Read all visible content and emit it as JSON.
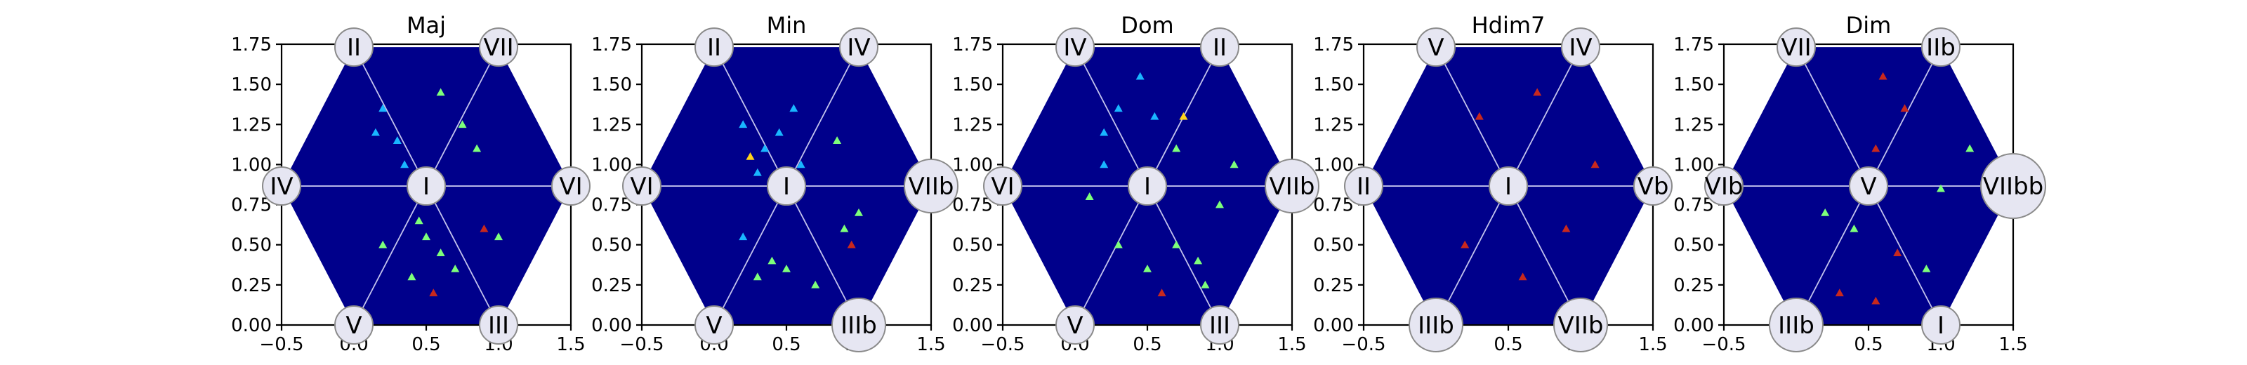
{
  "chart_data": [
    {
      "type": "heatmap",
      "title": "Maj",
      "xlim": [
        -0.5,
        1.5
      ],
      "ylim": [
        0.0,
        1.75
      ],
      "xticks": [
        "−0.5",
        "0.0",
        "0.5",
        "1.0",
        "1.5"
      ],
      "yticks": [
        "0.00",
        "0.25",
        "0.50",
        "0.75",
        "1.00",
        "1.25",
        "1.50",
        "1.75"
      ],
      "nodes": [
        {
          "label": "I",
          "x": 0.5,
          "y": 0.866
        },
        {
          "label": "II",
          "x": 0.0,
          "y": 1.732
        },
        {
          "label": "VII",
          "x": 1.0,
          "y": 1.732
        },
        {
          "label": "IV",
          "x": -0.5,
          "y": 0.866
        },
        {
          "label": "VI",
          "x": 1.5,
          "y": 0.866
        },
        {
          "label": "V",
          "x": 0.0,
          "y": 0.0
        },
        {
          "label": "III",
          "x": 1.0,
          "y": 0.0
        }
      ],
      "hot_points": [
        {
          "x": 0.15,
          "y": 1.2,
          "level": "cyan"
        },
        {
          "x": 0.2,
          "y": 1.35,
          "level": "cyan"
        },
        {
          "x": 0.3,
          "y": 1.15,
          "level": "cyan"
        },
        {
          "x": 0.6,
          "y": 1.45,
          "level": "green"
        },
        {
          "x": 0.75,
          "y": 1.25,
          "level": "green"
        },
        {
          "x": 0.85,
          "y": 1.1,
          "level": "green"
        },
        {
          "x": 0.5,
          "y": 0.55,
          "level": "green"
        },
        {
          "x": 0.6,
          "y": 0.45,
          "level": "green"
        },
        {
          "x": 0.2,
          "y": 0.5,
          "level": "green"
        },
        {
          "x": 0.4,
          "y": 0.3,
          "level": "green"
        },
        {
          "x": 0.7,
          "y": 0.35,
          "level": "green"
        },
        {
          "x": 0.55,
          "y": 0.2,
          "level": "red"
        },
        {
          "x": 0.9,
          "y": 0.6,
          "level": "red"
        },
        {
          "x": 0.35,
          "y": 1.0,
          "level": "cyan"
        },
        {
          "x": 1.0,
          "y": 0.55,
          "level": "green"
        },
        {
          "x": 0.45,
          "y": 0.65,
          "level": "green"
        }
      ]
    },
    {
      "type": "heatmap",
      "title": "Min",
      "xlim": [
        -0.5,
        1.5
      ],
      "ylim": [
        0.0,
        1.75
      ],
      "xticks": [
        "−0.5",
        "0.0",
        "0.5",
        "1.0",
        "1.5"
      ],
      "yticks": [
        "0.00",
        "0.25",
        "0.50",
        "0.75",
        "1.00",
        "1.25",
        "1.50",
        "1.75"
      ],
      "nodes": [
        {
          "label": "I",
          "x": 0.5,
          "y": 0.866
        },
        {
          "label": "II",
          "x": 0.0,
          "y": 1.732
        },
        {
          "label": "IV",
          "x": 1.0,
          "y": 1.732
        },
        {
          "label": "VI",
          "x": -0.5,
          "y": 0.866
        },
        {
          "label": "VIIb",
          "x": 1.5,
          "y": 0.866
        },
        {
          "label": "V",
          "x": 0.0,
          "y": 0.0
        },
        {
          "label": "IIIb",
          "x": 1.0,
          "y": 0.0
        }
      ],
      "hot_points": [
        {
          "x": 0.25,
          "y": 1.05,
          "level": "yellow"
        },
        {
          "x": 0.35,
          "y": 1.1,
          "level": "cyan"
        },
        {
          "x": 0.2,
          "y": 1.25,
          "level": "cyan"
        },
        {
          "x": 0.45,
          "y": 1.2,
          "level": "cyan"
        },
        {
          "x": 0.55,
          "y": 1.35,
          "level": "cyan"
        },
        {
          "x": 0.3,
          "y": 0.95,
          "level": "cyan"
        },
        {
          "x": 0.4,
          "y": 0.4,
          "level": "green"
        },
        {
          "x": 0.3,
          "y": 0.3,
          "level": "green"
        },
        {
          "x": 0.5,
          "y": 0.35,
          "level": "green"
        },
        {
          "x": 0.2,
          "y": 0.55,
          "level": "cyan"
        },
        {
          "x": 0.9,
          "y": 0.6,
          "level": "green"
        },
        {
          "x": 1.0,
          "y": 0.7,
          "level": "green"
        },
        {
          "x": 0.85,
          "y": 1.15,
          "level": "green"
        },
        {
          "x": 0.7,
          "y": 0.25,
          "level": "green"
        },
        {
          "x": 0.95,
          "y": 0.5,
          "level": "red"
        },
        {
          "x": 0.6,
          "y": 1.0,
          "level": "cyan"
        }
      ]
    },
    {
      "type": "heatmap",
      "title": "Dom",
      "xlim": [
        -0.5,
        1.5
      ],
      "ylim": [
        0.0,
        1.75
      ],
      "xticks": [
        "−0.5",
        "0.0",
        "0.5",
        "1.0",
        "1.5"
      ],
      "yticks": [
        "0.00",
        "0.25",
        "0.50",
        "0.75",
        "1.00",
        "1.25",
        "1.50",
        "1.75"
      ],
      "nodes": [
        {
          "label": "I",
          "x": 0.5,
          "y": 0.866
        },
        {
          "label": "IV",
          "x": 0.0,
          "y": 1.732
        },
        {
          "label": "II",
          "x": 1.0,
          "y": 1.732
        },
        {
          "label": "VI",
          "x": -0.5,
          "y": 0.866
        },
        {
          "label": "VIIb",
          "x": 1.5,
          "y": 0.866
        },
        {
          "label": "V",
          "x": 0.0,
          "y": 0.0
        },
        {
          "label": "III",
          "x": 1.0,
          "y": 0.0
        }
      ],
      "hot_points": [
        {
          "x": 0.2,
          "y": 1.2,
          "level": "cyan"
        },
        {
          "x": 0.3,
          "y": 1.35,
          "level": "cyan"
        },
        {
          "x": 0.55,
          "y": 1.3,
          "level": "cyan"
        },
        {
          "x": 0.7,
          "y": 1.1,
          "level": "green"
        },
        {
          "x": 0.45,
          "y": 1.55,
          "level": "cyan"
        },
        {
          "x": 0.75,
          "y": 1.3,
          "level": "yellow"
        },
        {
          "x": 0.3,
          "y": 0.5,
          "level": "green"
        },
        {
          "x": 0.5,
          "y": 0.35,
          "level": "green"
        },
        {
          "x": 0.7,
          "y": 0.5,
          "level": "green"
        },
        {
          "x": 0.85,
          "y": 0.4,
          "level": "green"
        },
        {
          "x": 1.0,
          "y": 0.75,
          "level": "green"
        },
        {
          "x": 1.1,
          "y": 1.0,
          "level": "green"
        },
        {
          "x": 0.6,
          "y": 0.2,
          "level": "red"
        },
        {
          "x": 0.1,
          "y": 0.8,
          "level": "green"
        },
        {
          "x": 0.2,
          "y": 1.0,
          "level": "cyan"
        },
        {
          "x": 0.9,
          "y": 0.25,
          "level": "green"
        }
      ]
    },
    {
      "type": "heatmap",
      "title": "Hdim7",
      "xlim": [
        -0.5,
        1.5
      ],
      "ylim": [
        0.0,
        1.75
      ],
      "xticks": [
        "−0.5",
        "0.0",
        "0.5",
        "1.0",
        "1.5"
      ],
      "yticks": [
        "0.00",
        "0.25",
        "0.50",
        "0.75",
        "1.00",
        "1.25",
        "1.50",
        "1.75"
      ],
      "nodes": [
        {
          "label": "I",
          "x": 0.5,
          "y": 0.866
        },
        {
          "label": "V",
          "x": 0.0,
          "y": 1.732
        },
        {
          "label": "IV",
          "x": 1.0,
          "y": 1.732
        },
        {
          "label": "II",
          "x": -0.5,
          "y": 0.866
        },
        {
          "label": "Vb",
          "x": 1.5,
          "y": 0.866
        },
        {
          "label": "IIIb",
          "x": 0.0,
          "y": 0.0
        },
        {
          "label": "VIIb",
          "x": 1.0,
          "y": 0.0
        }
      ],
      "hot_points": [
        {
          "x": 0.3,
          "y": 1.3,
          "level": "red"
        },
        {
          "x": 0.7,
          "y": 1.45,
          "level": "red"
        },
        {
          "x": 0.9,
          "y": 0.6,
          "level": "red"
        },
        {
          "x": 0.6,
          "y": 0.3,
          "level": "red"
        },
        {
          "x": 0.2,
          "y": 0.5,
          "level": "red"
        },
        {
          "x": 1.1,
          "y": 1.0,
          "level": "red"
        }
      ]
    },
    {
      "type": "heatmap",
      "title": "Dim",
      "xlim": [
        -0.5,
        1.5
      ],
      "ylim": [
        0.0,
        1.75
      ],
      "xticks": [
        "−0.5",
        "0.0",
        "0.5",
        "1.0",
        "1.5"
      ],
      "yticks": [
        "0.00",
        "0.25",
        "0.50",
        "0.75",
        "1.00",
        "1.25",
        "1.50",
        "1.75"
      ],
      "nodes": [
        {
          "label": "V",
          "x": 0.5,
          "y": 0.866
        },
        {
          "label": "VII",
          "x": 0.0,
          "y": 1.732
        },
        {
          "label": "IIb",
          "x": 1.0,
          "y": 1.732
        },
        {
          "label": "VIb",
          "x": -0.5,
          "y": 0.866
        },
        {
          "label": "VIIbb",
          "x": 1.5,
          "y": 0.866
        },
        {
          "label": "IIIb",
          "x": 0.0,
          "y": 0.0
        },
        {
          "label": "I",
          "x": 1.0,
          "y": 0.0
        }
      ],
      "hot_points": [
        {
          "x": 0.6,
          "y": 1.55,
          "level": "red"
        },
        {
          "x": 0.75,
          "y": 1.35,
          "level": "red"
        },
        {
          "x": 0.55,
          "y": 1.1,
          "level": "red"
        },
        {
          "x": 1.2,
          "y": 1.1,
          "level": "green"
        },
        {
          "x": 0.2,
          "y": 0.7,
          "level": "green"
        },
        {
          "x": 0.3,
          "y": 0.2,
          "level": "red"
        },
        {
          "x": 0.55,
          "y": 0.15,
          "level": "red"
        },
        {
          "x": 0.9,
          "y": 0.35,
          "level": "green"
        },
        {
          "x": 0.4,
          "y": 0.6,
          "level": "green"
        },
        {
          "x": 1.0,
          "y": 0.85,
          "level": "green"
        },
        {
          "x": 0.7,
          "y": 0.45,
          "level": "red"
        }
      ]
    }
  ],
  "colors": {
    "background": "#00008b",
    "cyan": "#19b6ff",
    "green": "#7dff7a",
    "yellow": "#ffd21a",
    "red": "#c8281e"
  }
}
